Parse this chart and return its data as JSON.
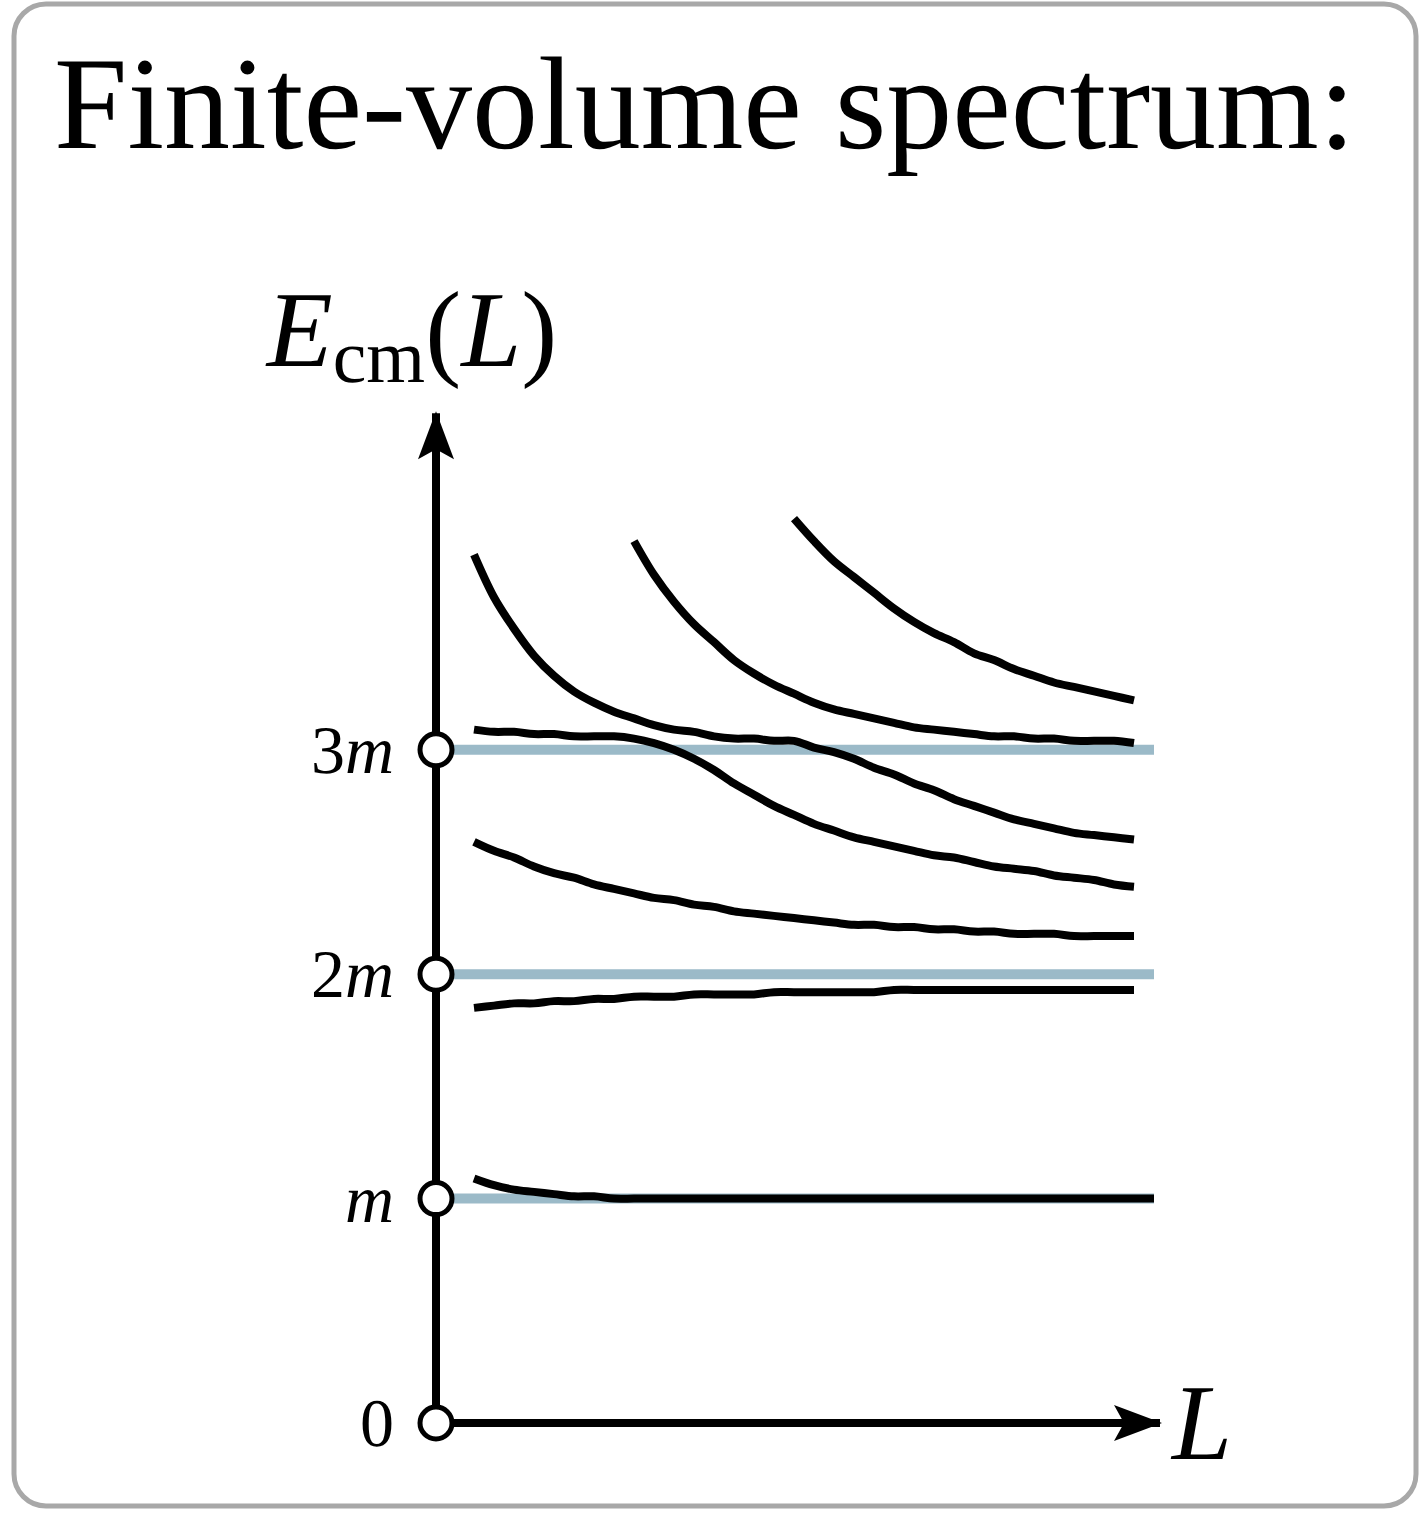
{
  "chart_data": {
    "type": "line",
    "title": "Finite-volume spectrum:",
    "xlabel": "L",
    "ylabel": "E$_{cm}$(L)",
    "categories": [
      null,
      null,
      null,
      null,
      null,
      null,
      null,
      null,
      null,
      null,
      null,
      null,
      null,
      null,
      null,
      null,
      null,
      null,
      null,
      null,
      null,
      null,
      null,
      null,
      null,
      null,
      null,
      null,
      null,
      null,
      null,
      null,
      null,
      null,
      null
    ],
    "series": [
      {
        "color": "#000000",
        "values": [
          1.09,
          1.06,
          1.04,
          1.03,
          1.02,
          1.01,
          1.01,
          1.0,
          1.0,
          1.0,
          1.0,
          1.0,
          1.0,
          1.0,
          1.0,
          1.0,
          1.0,
          1.0,
          1.0,
          1.0,
          1.0,
          1.0,
          1.0,
          1.0,
          1.0,
          1.0,
          1.0,
          1.0,
          1.0,
          1.0,
          1.0,
          1.0,
          1.0,
          1.0,
          1.0
        ]
      },
      {
        "color": "#000000",
        "values": [
          1.85,
          1.86,
          1.87,
          1.87,
          1.88,
          1.88,
          1.89,
          1.89,
          1.9,
          1.9,
          1.9,
          1.91,
          1.91,
          1.91,
          1.91,
          1.92,
          1.92,
          1.92,
          1.92,
          1.92,
          1.92,
          1.93,
          1.93,
          1.93,
          1.93,
          1.93,
          1.93,
          1.93,
          1.93,
          1.93,
          1.93,
          1.93,
          1.93,
          1.93,
          null
        ]
      },
      {
        "color": "#000000",
        "values": [
          2.59,
          2.55,
          2.52,
          2.48,
          2.45,
          2.43,
          2.4,
          2.38,
          2.36,
          2.34,
          2.33,
          2.31,
          2.3,
          2.28,
          2.27,
          2.26,
          2.25,
          2.24,
          2.23,
          2.22,
          2.22,
          2.21,
          2.21,
          2.2,
          2.2,
          2.19,
          2.19,
          2.18,
          2.18,
          2.18,
          2.17,
          2.17,
          2.17,
          2.17,
          null
        ]
      },
      {
        "color": "#000000",
        "values": [
          3.09,
          3.08,
          3.08,
          3.07,
          3.07,
          3.06,
          3.06,
          3.06,
          3.05,
          3.03,
          3.0,
          2.96,
          2.91,
          2.85,
          2.8,
          2.75,
          2.71,
          2.67,
          2.64,
          2.61,
          2.59,
          2.57,
          2.55,
          2.53,
          2.52,
          2.5,
          2.48,
          2.47,
          2.46,
          2.44,
          2.43,
          2.42,
          2.4,
          2.39,
          null
        ]
      },
      {
        "color": "#000000",
        "values": [
          3.87,
          3.68,
          3.54,
          3.42,
          3.33,
          3.26,
          3.21,
          3.17,
          3.14,
          3.11,
          3.09,
          3.08,
          3.06,
          3.05,
          3.05,
          3.04,
          3.04,
          3.01,
          2.99,
          2.96,
          2.92,
          2.89,
          2.85,
          2.82,
          2.78,
          2.75,
          2.72,
          2.69,
          2.67,
          2.65,
          2.63,
          2.62,
          2.61,
          2.6,
          null
        ]
      },
      {
        "color": "#000000",
        "values": [
          null,
          null,
          null,
          null,
          null,
          null,
          null,
          null,
          3.93,
          3.78,
          3.66,
          3.56,
          3.48,
          3.4,
          3.34,
          3.29,
          3.25,
          3.21,
          3.18,
          3.16,
          3.14,
          3.12,
          3.1,
          3.09,
          3.08,
          3.07,
          3.06,
          3.06,
          3.05,
          3.05,
          3.04,
          3.04,
          3.04,
          3.03,
          null
        ]
      },
      {
        "color": "#000000",
        "values": [
          null,
          null,
          null,
          null,
          null,
          null,
          null,
          null,
          null,
          null,
          null,
          null,
          null,
          null,
          null,
          null,
          4.03,
          3.93,
          3.84,
          3.77,
          3.7,
          3.63,
          3.57,
          3.52,
          3.48,
          3.43,
          3.4,
          3.36,
          3.33,
          3.3,
          3.28,
          3.26,
          3.24,
          3.22,
          null
        ]
      }
    ],
    "ylim": [
      0,
      4.5
    ],
    "yticks": [
      0,
      {
        "value": 1,
        "label": "m"
      },
      {
        "value": 2,
        "label": "2m"
      },
      {
        "value": 3,
        "label": "3m"
      }
    ],
    "ref_lines": [
      {
        "axis": "y",
        "value": 1,
        "color": "#9bbac8"
      },
      {
        "axis": "y",
        "value": 2,
        "color": "#9bbac8"
      },
      {
        "axis": "y",
        "value": 3,
        "color": "#9bbac8"
      }
    ],
    "tick_labels": "y"
  }
}
